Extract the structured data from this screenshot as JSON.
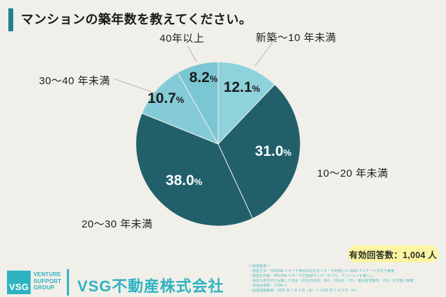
{
  "header": {
    "title": "マンションの築年数を教えてください。"
  },
  "chart_data": {
    "type": "pie",
    "title": "マンションの築年数を教えてください。",
    "categories": [
      "新築～10 年未満",
      "10～20 年未満",
      "20～30 年未満",
      "30～40 年未満",
      "40年以上"
    ],
    "values": [
      12.1,
      31.0,
      38.0,
      10.7,
      8.2
    ],
    "value_labels": [
      "12.1",
      "31.0",
      "38.0",
      "10.7",
      "8.2"
    ],
    "percent_sign": "%",
    "unit": "%",
    "colors": [
      "#8ed2dc",
      "#215f6b",
      "#215f6b",
      "#85cbd7",
      "#7bc6d3"
    ],
    "slice_text_colors": [
      "#1b1b1b",
      "#ffffff",
      "#ffffff",
      "#1b1b1b",
      "#1b1b1b"
    ],
    "start": "12-oclock",
    "direction": "clockwise",
    "center": [
      313,
      207
    ],
    "radius": 118,
    "background": "#f1efe9"
  },
  "badge": {
    "label": "有効回答数：1,004 人",
    "bg_color": "#fbf5a2"
  },
  "footer": {
    "logo_text": "VSG",
    "logo_subtext_lines": [
      "VENTURE",
      "SUPPORT",
      "GROUP"
    ],
    "company_name": "VSG不動産株式会社",
    "brand_color": "#2fb3c1"
  },
  "survey_notes": {
    "heading": "＜調査概要＞",
    "lines": [
      "・調査方法：PRIZMA リサーチ株式会社のモニターを利用した WEB アンケート方式で実施",
      "・調査の対象：PRIZMA リサーチ社登録モニターのうち、マンションを購入し、",
      "　現在も居住中と回答した男女（23区内在住：502、23区外：251、複合指定都市：251）を対象に実施",
      "・有効回答数：1,004 人",
      "・調査実施期間：2025 年 7 月 2 日（水）～ 2025 年 7 月 3 日（木）"
    ]
  }
}
